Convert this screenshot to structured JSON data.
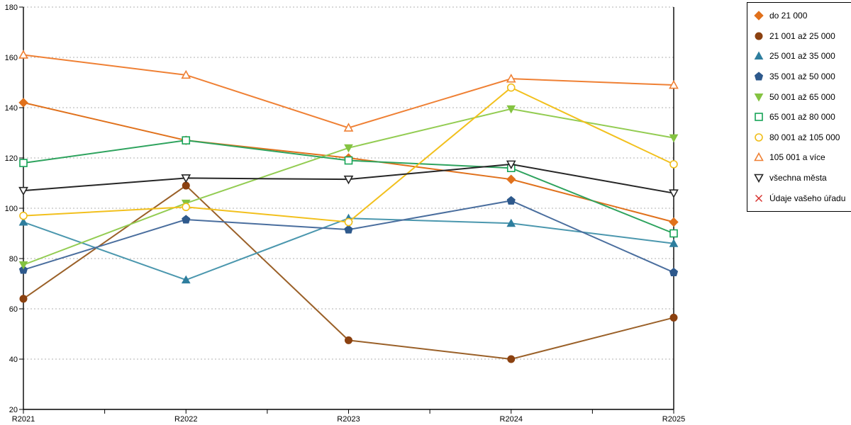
{
  "chart_data": {
    "type": "line",
    "title": "",
    "xlabel": "",
    "ylabel": "",
    "categories": [
      "R2021",
      "R2022",
      "R2023",
      "R2024",
      "R2025"
    ],
    "y_axis": {
      "min": 20,
      "max": 180,
      "tick_step": 20,
      "tick_labels": [
        "20",
        "40",
        "60",
        "80",
        "100",
        "120",
        "140",
        "160",
        "180"
      ]
    },
    "grid": {
      "horizontal": true,
      "style": "dotted",
      "color": "#b0b0b0"
    },
    "legend_position": "top-right-bordered-box",
    "series": [
      {
        "name": "do 21 000",
        "marker": "diamond-filled",
        "color": "#E0711C",
        "marker_color": "#E0711C",
        "values": [
          142,
          127,
          120,
          111.5,
          94.5
        ]
      },
      {
        "name": "21 001 až 25 000",
        "marker": "circle-filled",
        "color": "#9A6028",
        "marker_color": "#8B4110",
        "values": [
          64,
          109,
          47.5,
          40,
          56.5
        ]
      },
      {
        "name": "25 001 až 35 000",
        "marker": "triangle-up-filled",
        "color": "#4B97AE",
        "marker_color": "#2E7E9E",
        "values": [
          94.5,
          71.5,
          96,
          94,
          86
        ]
      },
      {
        "name": "35 001 až 50 000",
        "marker": "pentagon-filled",
        "color": "#4A6E9E",
        "marker_color": "#2E598C",
        "values": [
          75.5,
          95.5,
          91.5,
          103,
          74.5
        ]
      },
      {
        "name": "50 001 až 65 000",
        "marker": "triangle-down-filled",
        "color": "#93CC52",
        "marker_color": "#84C341",
        "values": [
          77.5,
          102,
          124,
          139.5,
          128
        ]
      },
      {
        "name": "65 001 až 80 000",
        "marker": "square-open",
        "color": "#2EA35E",
        "marker_color": "#17A457",
        "values": [
          118,
          127,
          119,
          116,
          90
        ]
      },
      {
        "name": "80 001 až 105 000",
        "marker": "circle-open",
        "color": "#F2C01D",
        "marker_color": "#F0BE19",
        "values": [
          97,
          100.5,
          94.5,
          148,
          117.5
        ]
      },
      {
        "name": "105 001 a více",
        "marker": "triangle-up-open",
        "color": "#EF8034",
        "marker_color": "#EF8034",
        "values": [
          161,
          153,
          132,
          151.5,
          149
        ]
      },
      {
        "name": "všechna města",
        "marker": "triangle-down-open",
        "color": "#262626",
        "marker_color": "#262626",
        "values": [
          107,
          112,
          111.5,
          117.5,
          106
        ]
      },
      {
        "name": "Údaje vašeho úřadu",
        "marker": "x",
        "color": "#D62B28",
        "marker_color": "#D62B28",
        "values": []
      }
    ]
  }
}
